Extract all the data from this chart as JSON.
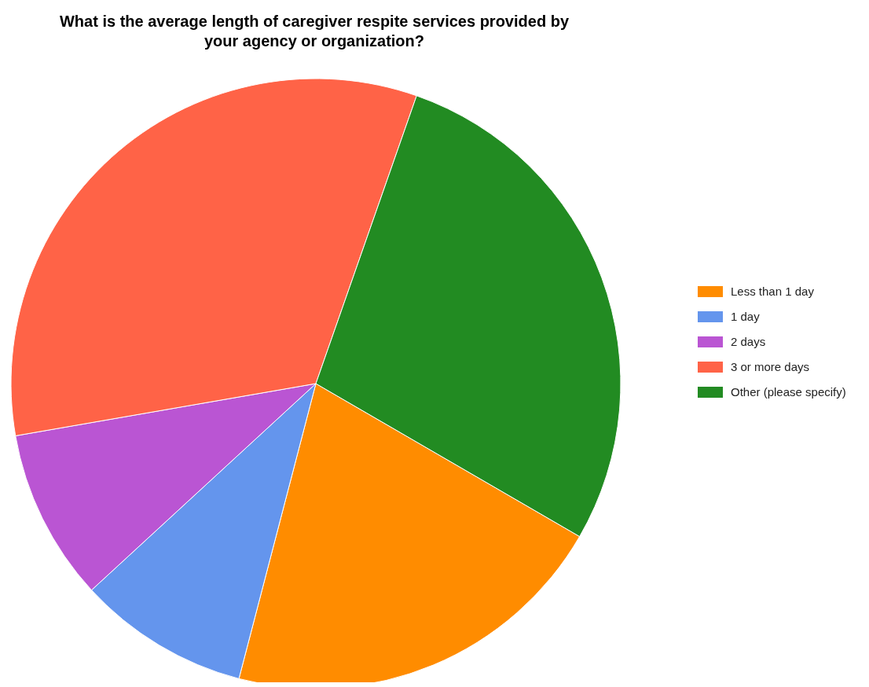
{
  "chart_data": {
    "type": "pie",
    "title": "What is the average length of caregiver respite services provided by your agency or organization?",
    "categories": [
      "Less than 1 day",
      "1 day",
      "2 days",
      "3 or more days",
      "Other (please specify)"
    ],
    "values": [
      20.7,
      9.1,
      9.1,
      33.1,
      28.0
    ],
    "colors": [
      "#ff8c00",
      "#6495ed",
      "#ba55d3",
      "#ff6347",
      "#228b22"
    ],
    "legend": "right"
  }
}
